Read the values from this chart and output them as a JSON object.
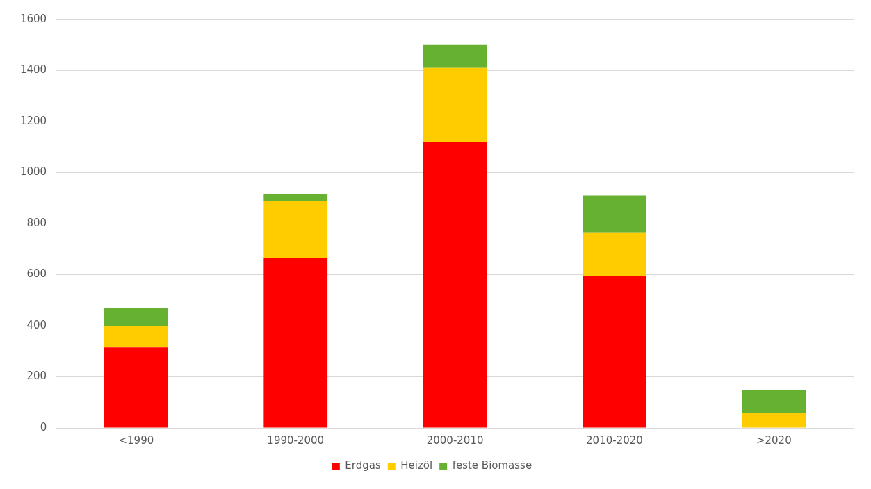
{
  "chart_data": {
    "type": "bar",
    "stacked": true,
    "categories": [
      "<1990",
      "1990-2000",
      "2000-2010",
      "2010-2020",
      ">2020"
    ],
    "series": [
      {
        "name": "Erdgas",
        "color": "#ff0000",
        "values": [
          315,
          665,
          1120,
          595,
          0
        ]
      },
      {
        "name": "Heizöl",
        "color": "#ffcc00",
        "values": [
          85,
          223,
          290,
          170,
          60
        ]
      },
      {
        "name": "feste Biomasse",
        "color": "#66b032",
        "values": [
          70,
          27,
          90,
          145,
          90
        ]
      }
    ],
    "ylim": [
      0,
      1600
    ],
    "yticks": [
      0,
      200,
      400,
      600,
      800,
      1000,
      1200,
      1400,
      1600
    ],
    "grid": "y",
    "legend": "bottom"
  }
}
